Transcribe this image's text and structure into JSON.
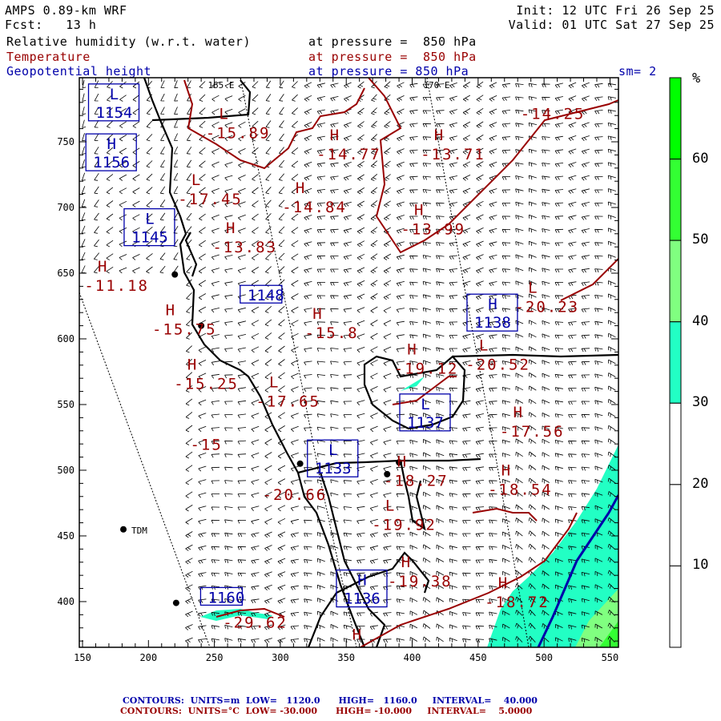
{
  "header": {
    "model": "AMPS 0.89-km WRF",
    "forecast": "Fcst:   13 h",
    "init": "Init: 12 UTC Fri 26 Sep 25",
    "valid": "Valid: 01 UTC Sat 27 Sep 25",
    "fields": [
      {
        "name": "Relative humidity (w.r.t. water)",
        "level": "at pressure =  850 hPa"
      },
      {
        "name": "Temperature",
        "level": "at pressure =  850 hPa"
      },
      {
        "name": "Geopotential height",
        "level": "at pressure = 850 hPa"
      }
    ],
    "smoothing": "sm= 2"
  },
  "meridians": [
    "165 E",
    "170 E"
  ],
  "colors": {
    "temperature": "#990000",
    "height": "#0000aa",
    "coast": "#000000"
  },
  "colorbar": {
    "unit": "%",
    "labels": [
      "60",
      "50",
      "40",
      "30",
      "20",
      "10"
    ],
    "bins": [
      {
        "range": [
          60,
          70
        ],
        "color": "#00ff00"
      },
      {
        "range": [
          50,
          60
        ],
        "color": "#33ff33"
      },
      {
        "range": [
          40,
          50
        ],
        "color": "#80ff80"
      },
      {
        "range": [
          30,
          40
        ],
        "color": "#22ffc4"
      },
      {
        "range": [
          20,
          30
        ],
        "color": "#ffffff"
      },
      {
        "range": [
          10,
          20
        ],
        "color": "#ffffff"
      },
      {
        "range": [
          0,
          10
        ],
        "color": "#ffffff"
      }
    ]
  },
  "chart_data": {
    "type": "map",
    "xlim": [
      146,
      556
    ],
    "ylim": [
      362,
      795
    ],
    "xticks": [
      "150",
      "200",
      "250",
      "300",
      "350",
      "400",
      "450",
      "500",
      "550"
    ],
    "yticks": [
      "400",
      "450",
      "500",
      "550",
      "600",
      "650",
      "700",
      "750"
    ],
    "stations": [
      {
        "label": "TDM",
        "x": 181,
        "y": 455
      },
      {
        "label": "",
        "x": 220,
        "y": 649
      },
      {
        "label": "",
        "x": 240,
        "y": 610
      },
      {
        "label": "",
        "x": 315,
        "y": 505
      },
      {
        "label": "",
        "x": 390,
        "y": 506
      },
      {
        "label": "",
        "x": 381,
        "y": 497
      },
      {
        "label": "",
        "x": 221,
        "y": 399
      }
    ],
    "temperature_extrema": [
      {
        "type": "L",
        "value": "-15.89",
        "x": 257,
        "y": 787
      },
      {
        "type": "H",
        "value": "-14.77",
        "x": 341,
        "y": 756
      },
      {
        "type": "H",
        "value": "-13.71",
        "x": 420,
        "y": 756
      },
      {
        "type": "",
        "value": "-14.25",
        "x": 520,
        "y": 787
      },
      {
        "type": "L",
        "value": "-17.45",
        "x": 236,
        "y": 722
      },
      {
        "type": "H",
        "value": "-14.84",
        "x": 315,
        "y": 716
      },
      {
        "type": "H",
        "value": "-13.99",
        "x": 405,
        "y": 699
      },
      {
        "type": "H",
        "value": "-13.83",
        "x": 165,
        "y": 744
      },
      {
        "type": "H",
        "value": "-11.18",
        "x": 165,
        "y": 700
      },
      {
        "type": "H",
        "value": "-15.75",
        "x": 265,
        "y": 652
      },
      {
        "type": "H",
        "value": "-15.8",
        "x": 328,
        "y": 620
      },
      {
        "type": "L",
        "value": "-20.23",
        "x": 467,
        "y": 640
      },
      {
        "type": "L",
        "value": "-20.52",
        "x": 527,
        "y": 640
      },
      {
        "type": "H",
        "value": "-19.12",
        "x": 424,
        "y": 593
      },
      {
        "type": "H",
        "value": "-15.25",
        "x": 233,
        "y": 596
      },
      {
        "type": "L",
        "value": "-17.65",
        "x": 295,
        "y": 568
      },
      {
        "type": "",
        "value": "-15",
        "x": 233,
        "y": 535
      },
      {
        "type": "H",
        "value": "-18.27",
        "x": 392,
        "y": 537
      },
      {
        "type": "H",
        "value": "-17.56",
        "x": 480,
        "y": 545
      },
      {
        "type": "H",
        "value": "-18.54",
        "x": 471,
        "y": 501
      },
      {
        "type": "",
        "value": "-20.66",
        "x": 300,
        "y": 497
      },
      {
        "type": "L",
        "value": "-19.92",
        "x": 383,
        "y": 474
      },
      {
        "type": "H",
        "value": "-19.38",
        "x": 395,
        "y": 431
      },
      {
        "type": "",
        "value": "-29.62",
        "x": 270,
        "y": 385
      },
      {
        "type": "H",
        "value": "-18.72",
        "x": 420,
        "y": 386
      },
      {
        "type": "H",
        "value": "",
        "x": 358,
        "y": 376
      }
    ],
    "height_extrema": [
      {
        "type": "L",
        "value": "1154",
        "x": 174,
        "y": 780
      },
      {
        "type": "H",
        "value": "1156",
        "x": 172,
        "y": 742
      },
      {
        "type": "L",
        "value": "1145",
        "x": 201,
        "y": 685
      },
      {
        "type": "",
        "value": "1148",
        "x": 289,
        "y": 634
      },
      {
        "type": "H",
        "value": "1138",
        "x": 461,
        "y": 620
      },
      {
        "type": "L",
        "value": "1137",
        "x": 410,
        "y": 544
      },
      {
        "type": "L",
        "value": "1133",
        "x": 340,
        "y": 509
      },
      {
        "type": "",
        "value": "1160",
        "x": 259,
        "y": 404
      },
      {
        "type": "H",
        "value": "1136",
        "x": 362,
        "y": 410
      }
    ]
  },
  "footer": {
    "height_contours": {
      "label": "CONTOURS:",
      "units": "UNITS=m",
      "low": "LOW=   1120.0",
      "high": "HIGH=   1160.0",
      "interval": "INTERVAL=    40.000"
    },
    "temp_contours": {
      "label": "CONTOURS:",
      "units": "UNITS=°C",
      "low": "LOW= -30.000",
      "high": "HIGH= -10.000",
      "interval": "INTERVAL=    5.0000"
    }
  }
}
